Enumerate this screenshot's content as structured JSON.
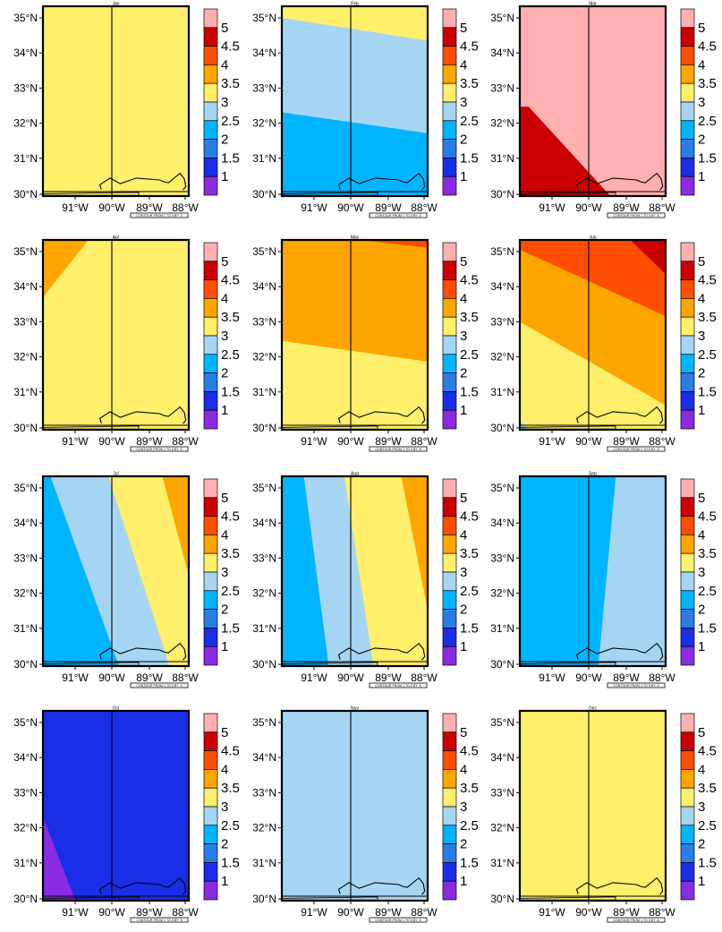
{
  "figure": {
    "panels": [
      {
        "title": "Jan"
      },
      {
        "title": "Feb"
      },
      {
        "title": "Mar"
      },
      {
        "title": "Apr"
      },
      {
        "title": "May"
      },
      {
        "title": "Jun"
      },
      {
        "title": "Jul"
      },
      {
        "title": "Aug"
      },
      {
        "title": "Sep"
      },
      {
        "title": "Oct"
      },
      {
        "title": "Nov"
      },
      {
        "title": "Dec"
      }
    ],
    "lat_labels": [
      "35°N",
      "34°N",
      "33°N",
      "32°N",
      "31°N",
      "30°N"
    ],
    "lon_labels": [
      "91°W",
      "90°W",
      "89°W",
      "88°W"
    ],
    "colorbar_labels": [
      "5",
      "4.5",
      "4",
      "3.5",
      "3",
      "2.5",
      "2",
      "1.5",
      "1"
    ],
    "colorbar_colors": [
      "#ffafb0",
      "#cc0000",
      "#ff4d00",
      "#ffa500",
      "#ffef6a",
      "#a5d5f2",
      "#00b5ff",
      "#2a7de6",
      "#1a2ee8",
      "#8a2be2"
    ],
    "contour_note": "CONTOUR FROM 1 TO 5 BY .5"
  }
}
